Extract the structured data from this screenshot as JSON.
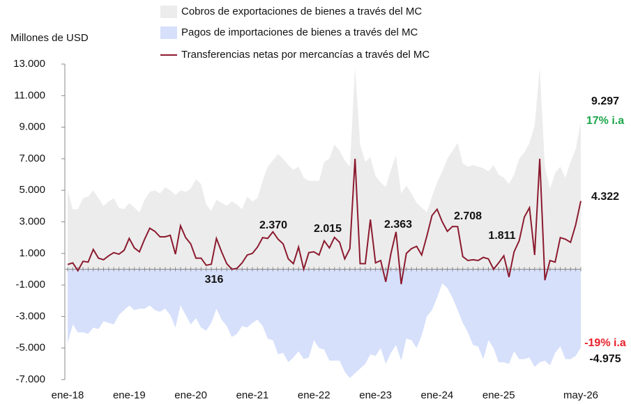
{
  "chart_data": {
    "type": "area-line",
    "y_label": "Millones de USD",
    "categories": [
      "ene-18",
      null,
      null,
      null,
      null,
      null,
      null,
      null,
      null,
      null,
      null,
      null,
      "ene-19",
      null,
      null,
      null,
      null,
      null,
      null,
      null,
      null,
      null,
      null,
      null,
      "ene-20",
      null,
      null,
      null,
      null,
      null,
      null,
      null,
      null,
      null,
      null,
      null,
      "ene-21",
      null,
      null,
      null,
      null,
      null,
      null,
      null,
      null,
      null,
      null,
      null,
      "ene-22",
      null,
      null,
      null,
      null,
      null,
      null,
      null,
      null,
      null,
      null,
      null,
      "ene-23",
      null,
      null,
      null,
      null,
      null,
      null,
      null,
      null,
      null,
      null,
      null,
      "ene-24",
      null,
      null,
      null,
      null,
      null,
      null,
      null,
      null,
      null,
      null,
      null,
      "ene-25",
      null,
      null,
      null,
      null,
      null,
      null,
      null,
      null,
      null,
      null,
      null,
      null,
      null,
      null,
      null,
      "may-26"
    ],
    "series": [
      {
        "name": "Cobros de exportaciones de bienes a través del MC",
        "kind": "area",
        "color": "#ececec",
        "values": [
          5000,
          3800,
          3800,
          4500,
          4600,
          5000,
          4500,
          4000,
          4300,
          4500,
          3900,
          3800,
          4200,
          3900,
          3600,
          4400,
          4900,
          5000,
          4800,
          5200,
          5000,
          4700,
          5000,
          4900,
          5100,
          5700,
          5400,
          4100,
          3700,
          4400,
          4200,
          4000,
          4300,
          4100,
          3800,
          4600,
          4300,
          4500,
          5600,
          6500,
          6900,
          7300,
          7000,
          6600,
          6300,
          6500,
          5800,
          5600,
          5600,
          5600,
          6800,
          7000,
          7900,
          7500,
          6900,
          6500,
          12800,
          7900,
          6800,
          7100,
          5900,
          5500,
          5200,
          6300,
          7200,
          4800,
          5300,
          4800,
          4200,
          3900,
          3600,
          4600,
          5500,
          6200,
          7000,
          7500,
          8000,
          6700,
          6500,
          6600,
          6500,
          6400,
          6200,
          6600,
          6000,
          5800,
          5400,
          6000,
          7000,
          7400,
          8000,
          9100,
          12800,
          6500,
          5100,
          6100,
          6500,
          5800,
          6800,
          7600,
          9297
        ],
        "end_label": "9.297",
        "change_label": "17% i.a",
        "change_color": "#1aa64a"
      },
      {
        "name": "Pagos de importaciones de bienes a través del MC",
        "kind": "area",
        "color": "#d6e0fb",
        "values": [
          -4700,
          -3500,
          -4000,
          -4000,
          -4100,
          -3700,
          -3800,
          -3300,
          -3400,
          -3500,
          -2900,
          -2600,
          -2300,
          -2600,
          -2500,
          -2500,
          -2300,
          -2600,
          -2700,
          -2500,
          -2900,
          -3700,
          -2300,
          -2900,
          -3500,
          -3100,
          -3700,
          -3900,
          -3400,
          -2500,
          -3200,
          -3600,
          -4300,
          -4100,
          -3600,
          -3700,
          -3400,
          -3200,
          -3600,
          -4400,
          -4500,
          -5400,
          -5300,
          -5900,
          -5600,
          -5200,
          -5700,
          -5600,
          -4500,
          -5000,
          -5100,
          -5800,
          -5800,
          -5800,
          -6500,
          -6900,
          -6600,
          -6300,
          -6000,
          -5400,
          -5500,
          -5000,
          -6000,
          -5300,
          -4800,
          -5800,
          -4400,
          -4500,
          -5000,
          -4200,
          -3000,
          -2600,
          -1800,
          -900,
          -1200,
          -1800,
          -2600,
          -3400,
          -4000,
          -4800,
          -4900,
          -5700,
          -4500,
          -5000,
          -5900,
          -5900,
          -6000,
          -5200,
          -5700,
          -5700,
          -5600,
          -6200,
          -5900,
          -5800,
          -6100,
          -5300,
          -4900,
          -5700,
          -5700,
          -5500,
          -4975
        ],
        "end_label": "-4.975",
        "change_label": "-19% i.a",
        "change_color": "#e8202a"
      },
      {
        "name": "Transferencias netas por mercancías a través del MC",
        "kind": "line",
        "color": "#8b1a2e",
        "values": [
          300,
          400,
          -100,
          500,
          450,
          1250,
          700,
          600,
          850,
          1050,
          950,
          1200,
          1950,
          1350,
          1100,
          1900,
          2600,
          2400,
          2050,
          2050,
          2150,
          950,
          2750,
          2000,
          1600,
          700,
          700,
          250,
          316,
          1950,
          1100,
          350,
          0,
          50,
          400,
          900,
          1000,
          1400,
          2000,
          1950,
          2370,
          1900,
          1600,
          650,
          350,
          1400,
          0,
          1050,
          1100,
          900,
          1800,
          1350,
          2015,
          1700,
          650,
          1300,
          7000,
          350,
          350,
          3150,
          400,
          550,
          -800,
          1000,
          2363,
          -950,
          1000,
          1300,
          1450,
          900,
          2100,
          3400,
          3800,
          3000,
          2400,
          2708,
          2700,
          800,
          550,
          600,
          550,
          750,
          650,
          0,
          400,
          850,
          -500,
          1100,
          1811,
          3300,
          3900,
          900,
          7000,
          -700,
          550,
          450,
          2000,
          1900,
          1700,
          2800,
          4322
        ],
        "end_label": "4.322"
      }
    ],
    "annotations": [
      "2.370",
      "316",
      "2.015",
      "2.363",
      "2.708",
      "1.811"
    ],
    "ylim": [
      -7000,
      13000
    ],
    "yticks": [
      {
        "value": 13000,
        "label": "13.000"
      },
      {
        "value": 11000,
        "label": "11.000"
      },
      {
        "value": 9000,
        "label": "9.000"
      },
      {
        "value": 7000,
        "label": "7.000"
      },
      {
        "value": 5000,
        "label": "5.000"
      },
      {
        "value": 3000,
        "label": "3.000"
      },
      {
        "value": 1000,
        "label": "1.000"
      },
      {
        "value": -1000,
        "label": "-1.000"
      },
      {
        "value": -3000,
        "label": "-3.000"
      },
      {
        "value": -5000,
        "label": "-5.000"
      },
      {
        "value": -7000,
        "label": "-7.000"
      }
    ],
    "grid": false
  }
}
